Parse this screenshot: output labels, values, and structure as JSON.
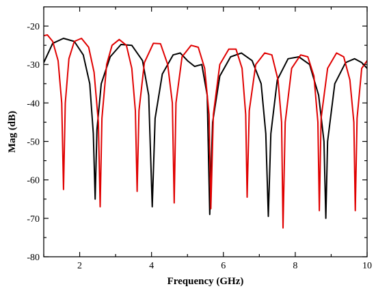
{
  "chart_data": {
    "type": "line",
    "title": "",
    "xlabel": "Frequency (GHz)",
    "ylabel": "Mag (dB)",
    "xlim": [
      1,
      10
    ],
    "ylim": [
      -80,
      -15
    ],
    "xticks": [
      2,
      4,
      6,
      8,
      10
    ],
    "yticks": [
      -80,
      -70,
      -60,
      -50,
      -40,
      -30,
      -20
    ],
    "grid": false,
    "legend": "none",
    "series": [
      {
        "color": "#000000",
        "x": [
          1.0,
          1.25,
          1.55,
          1.85,
          2.1,
          2.28,
          2.38,
          2.43,
          2.48,
          2.6,
          2.85,
          3.15,
          3.45,
          3.75,
          3.92,
          4.02,
          4.1,
          4.3,
          4.6,
          4.8,
          5.0,
          5.2,
          5.4,
          5.55,
          5.62,
          5.7,
          5.9,
          6.2,
          6.5,
          6.8,
          7.05,
          7.18,
          7.25,
          7.32,
          7.5,
          7.8,
          8.1,
          8.4,
          8.65,
          8.8,
          8.85,
          8.9,
          9.1,
          9.4,
          9.65,
          9.85,
          10.0
        ],
        "y": [
          -29.5,
          -24.5,
          -23.2,
          -24.0,
          -27.5,
          -35.0,
          -48.0,
          -65.0,
          -47.0,
          -35.0,
          -28.0,
          -24.8,
          -25.0,
          -29.0,
          -38.0,
          -67.0,
          -44.0,
          -32.5,
          -27.5,
          -27.0,
          -29.0,
          -30.5,
          -30.0,
          -38.0,
          -69.0,
          -45.0,
          -33.0,
          -28.0,
          -27.0,
          -29.0,
          -35.0,
          -48.0,
          -69.5,
          -48.0,
          -34.0,
          -28.5,
          -28.0,
          -30.0,
          -38.0,
          -50.0,
          -70.0,
          -50.0,
          -35.0,
          -29.5,
          -28.5,
          -29.5,
          -31.0
        ]
      },
      {
        "color": "#e00000",
        "x": [
          1.0,
          1.1,
          1.25,
          1.4,
          1.5,
          1.55,
          1.6,
          1.7,
          1.85,
          2.05,
          2.25,
          2.4,
          2.52,
          2.57,
          2.62,
          2.75,
          2.9,
          3.1,
          3.3,
          3.45,
          3.55,
          3.6,
          3.65,
          3.8,
          4.05,
          4.25,
          4.45,
          4.58,
          4.63,
          4.68,
          4.85,
          5.1,
          5.3,
          5.48,
          5.6,
          5.65,
          5.72,
          5.9,
          6.15,
          6.35,
          6.52,
          6.62,
          6.66,
          6.72,
          6.9,
          7.15,
          7.35,
          7.52,
          7.62,
          7.66,
          7.72,
          7.9,
          8.15,
          8.35,
          8.52,
          8.63,
          8.67,
          8.72,
          8.9,
          9.15,
          9.35,
          9.52,
          9.63,
          9.67,
          9.72,
          9.85,
          10.0
        ],
        "y": [
          -22.5,
          -22.3,
          -24.0,
          -29.0,
          -40.0,
          -62.5,
          -40.0,
          -28.5,
          -24.0,
          -23.2,
          -25.5,
          -32.0,
          -45.0,
          -67.0,
          -44.0,
          -30.0,
          -25.0,
          -23.5,
          -25.0,
          -31.0,
          -42.0,
          -63.0,
          -42.0,
          -29.5,
          -24.5,
          -24.6,
          -30.0,
          -40.0,
          -66.0,
          -40.0,
          -28.0,
          -25.0,
          -25.5,
          -31.0,
          -43.0,
          -67.5,
          -43.0,
          -30.0,
          -26.0,
          -26.0,
          -31.0,
          -43.0,
          -64.5,
          -42.0,
          -30.0,
          -27.0,
          -27.5,
          -34.0,
          -45.0,
          -72.5,
          -45.0,
          -31.0,
          -27.5,
          -28.0,
          -33.0,
          -45.0,
          -68.0,
          -44.0,
          -31.0,
          -27.0,
          -28.0,
          -34.0,
          -45.0,
          -68.0,
          -44.0,
          -31.0,
          -29.0
        ]
      }
    ]
  }
}
